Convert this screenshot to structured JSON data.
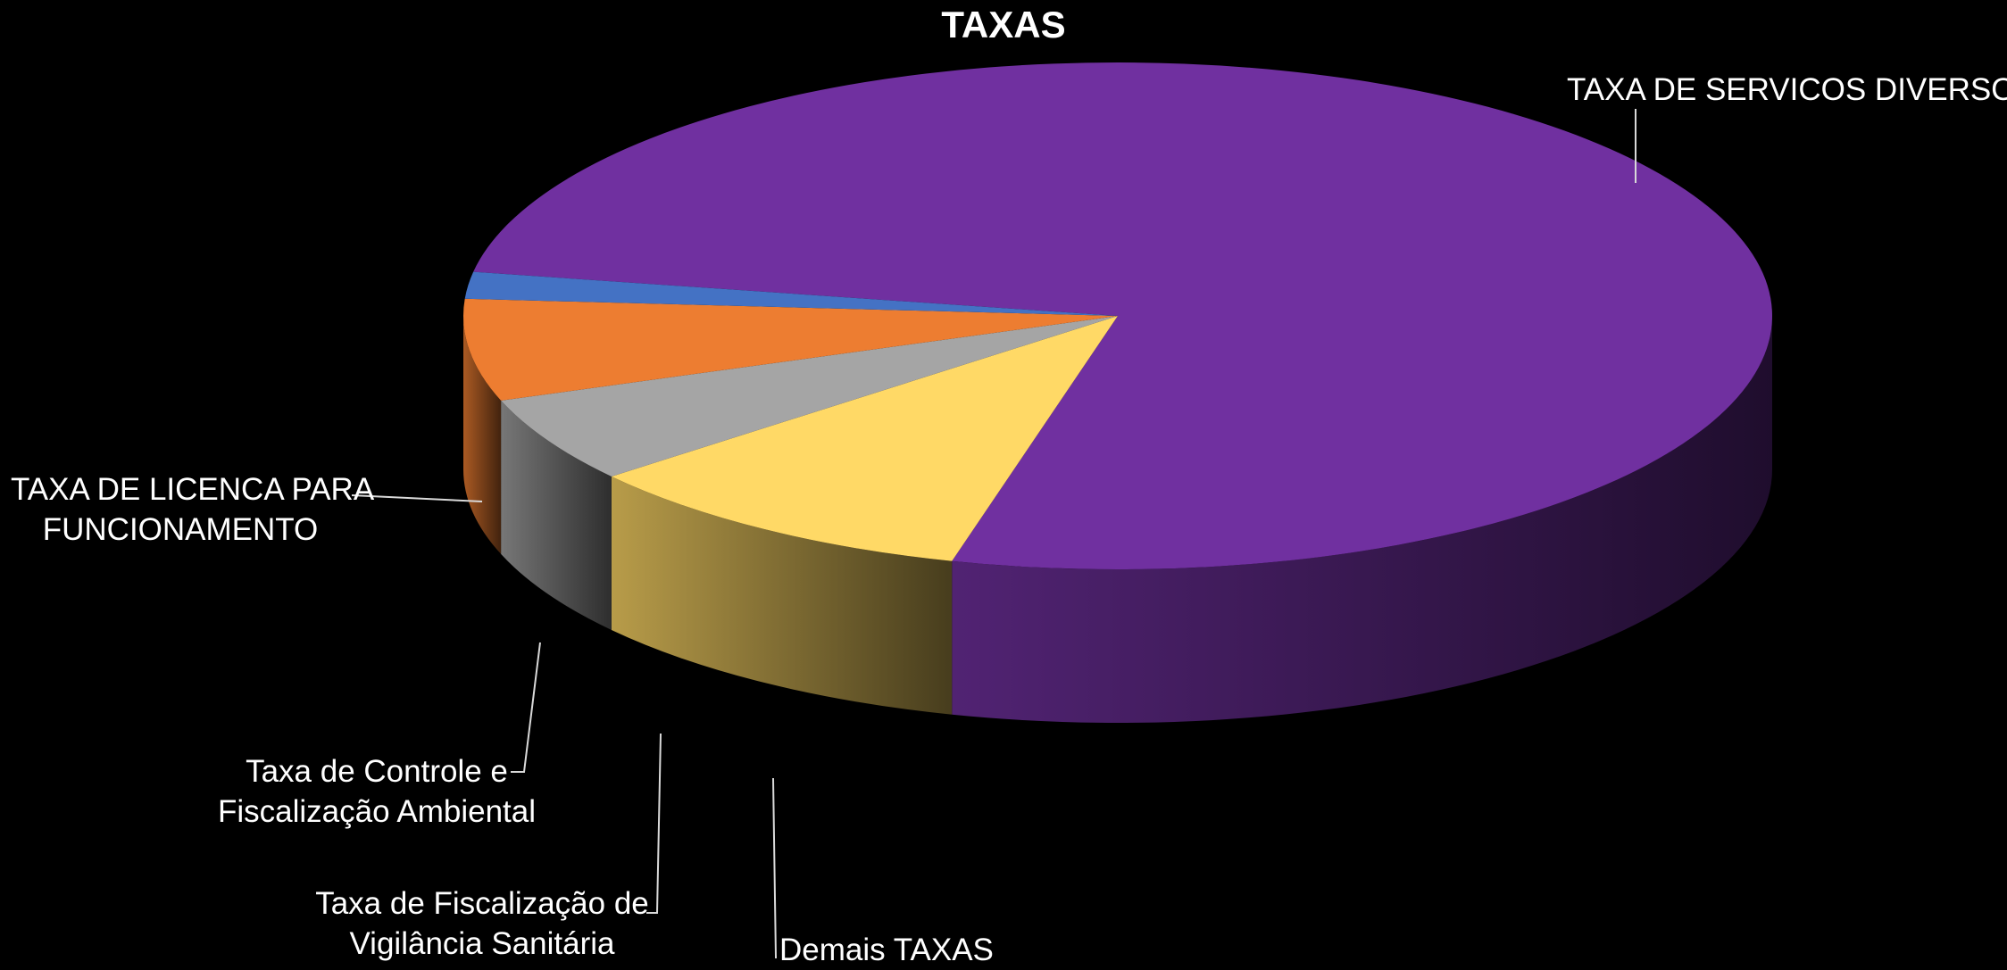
{
  "chart_data": {
    "type": "pie",
    "title": "TAXAS",
    "categories": [
      "TAXA DE SERVICOS DIVERSOS",
      "TAXA DE LICENCA PARA FUNCIONAMENTO",
      "Taxa de Controle e Fiscalização Ambiental",
      "Taxa de Fiscalização de Vigilância Sanitária",
      "Demais TAXAS"
    ],
    "values": [
      76.3,
      10.0,
      5.5,
      6.5,
      1.7
    ],
    "colors": [
      "#7030a0",
      "#ffd966",
      "#a5a5a5",
      "#ed7d31",
      "#4472c4"
    ],
    "legend": "none",
    "labels": [
      {
        "lines": [
          "TAXA DE SERVICOS DIVERSOS"
        ]
      },
      {
        "lines": [
          "TAXA DE LICENCA PARA",
          "FUNCIONAMENTO"
        ]
      },
      {
        "lines": [
          "Taxa de Controle e",
          "Fiscalização Ambiental"
        ]
      },
      {
        "lines": [
          "Taxa de Fiscalização de",
          "Vigilância Sanitária"
        ]
      },
      {
        "lines": [
          "Demais TAXAS"
        ]
      }
    ]
  }
}
